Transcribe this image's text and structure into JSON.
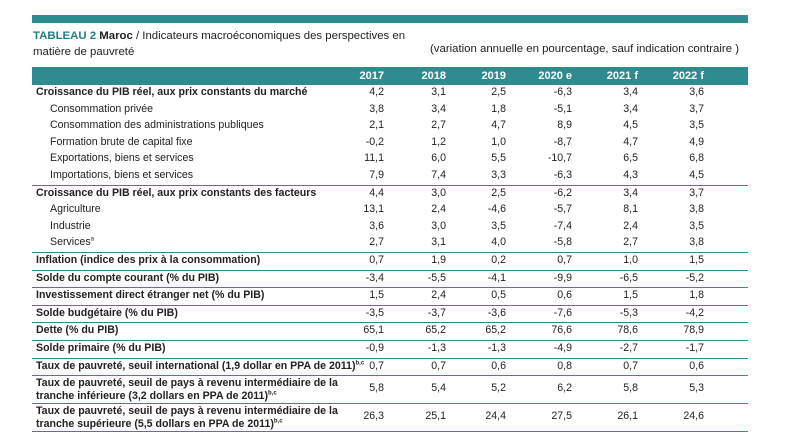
{
  "table": {
    "label": "TABLEAU 2",
    "country": "Maroc",
    "title_rest": " / Indicateurs macroéconomiques des perspectives en matière de pauvreté",
    "unit_note": "(variation annuelle en pourcentage, sauf indication contraire )",
    "years": [
      "2017",
      "2018",
      "2019",
      "2020 e",
      "2021 f",
      "2022 f"
    ],
    "rows": [
      {
        "label": "Croissance du PIB réel, aux prix constants du marché",
        "bold": true,
        "values": [
          "4,2",
          "3,1",
          "2,5",
          "-6,3",
          "3,4",
          "3,6"
        ]
      },
      {
        "label": "Consommation privée",
        "indent": true,
        "values": [
          "3,8",
          "3,4",
          "1,8",
          "-5,1",
          "3,4",
          "3,7"
        ]
      },
      {
        "label": "Consommation des administrations publiques",
        "indent": true,
        "values": [
          "2,1",
          "2,7",
          "4,7",
          "8,9",
          "4,5",
          "3,5"
        ]
      },
      {
        "label": "Formation brute de capital fixe",
        "indent": true,
        "values": [
          "-0,2",
          "1,2",
          "1,0",
          "-8,7",
          "4,7",
          "4,9"
        ]
      },
      {
        "label": "Exportations, biens et services",
        "indent": true,
        "values": [
          "11,1",
          "6,0",
          "5,5",
          "-10,7",
          "6,5",
          "6,8"
        ]
      },
      {
        "label": "Importations, biens et services",
        "indent": true,
        "values": [
          "7,9",
          "7,4",
          "3,3",
          "-6,3",
          "4,3",
          "4,5"
        ]
      },
      {
        "label": "Croissance du PIB réel, aux prix constants des facteurs",
        "bold": true,
        "sep": true,
        "values": [
          "4,4",
          "3,0",
          "2,5",
          "-6,2",
          "3,4",
          "3,7"
        ]
      },
      {
        "label": "Agriculture",
        "indent": true,
        "values": [
          "13,1",
          "2,4",
          "-4,6",
          "-5,7",
          "8,1",
          "3,8"
        ]
      },
      {
        "label": "Industrie",
        "indent": true,
        "values": [
          "3,6",
          "3,0",
          "3,5",
          "-7,4",
          "2,4",
          "3,5"
        ]
      },
      {
        "label": "Services",
        "sup": "a",
        "indent": true,
        "values": [
          "2,7",
          "3,1",
          "4,0",
          "-5,8",
          "2,7",
          "3,8"
        ]
      },
      {
        "label": "Inflation (indice des prix à la consommation)",
        "bold": true,
        "sep": true,
        "values": [
          "0,7",
          "1,9",
          "0,2",
          "0,7",
          "1,0",
          "1,5"
        ]
      },
      {
        "label": "Solde du compte courant (% du PIB)",
        "bold": true,
        "sep": true,
        "values": [
          "-3,4",
          "-5,5",
          "-4,1",
          "-9,9",
          "-6,5",
          "-5,2"
        ]
      },
      {
        "label": "Investissement direct étranger net (% du PIB)",
        "bold": true,
        "sep": true,
        "values": [
          "1,5",
          "2,4",
          "0,5",
          "0,6",
          "1,5",
          "1,8"
        ]
      },
      {
        "label": "Solde budgétaire (% du PIB)",
        "bold": true,
        "sep": true,
        "values": [
          "-3,5",
          "-3,7",
          "-3,6",
          "-7,6",
          "-5,3",
          "-4,2"
        ]
      },
      {
        "label": "Dette (% du PIB)",
        "bold": true,
        "sep": true,
        "values": [
          "65,1",
          "65,2",
          "65,2",
          "76,6",
          "78,6",
          "78,9"
        ]
      },
      {
        "label": "Solde primaire (% du PIB)",
        "bold": true,
        "sep": true,
        "values": [
          "-0,9",
          "-1,3",
          "-1,3",
          "-4,9",
          "-2,7",
          "-1,7"
        ]
      },
      {
        "label": "Taux de pauvreté, seuil international (1,9 dollar en PPA de 2011)",
        "sup": "b,c",
        "bold": true,
        "sep": true,
        "values": [
          "0,7",
          "0,7",
          "0,6",
          "0,8",
          "0,7",
          "0,6"
        ]
      },
      {
        "label": "Taux de pauvreté, seuil de pays à revenu intermédiaire de la",
        "label2": "tranche inférieure (3,2 dollars en PPA de 2011)",
        "sup": "b,c",
        "bold": true,
        "sep": true,
        "tall": true,
        "values": [
          "5,8",
          "5,4",
          "5,2",
          "6,2",
          "5,8",
          "5,3"
        ]
      },
      {
        "label": "Taux de pauvreté, seuil de pays à revenu intermédiaire de la",
        "label2": "tranche supérieure (5,5 dollars en PPA de 2011)",
        "sup": "b,c",
        "bold": true,
        "sep": true,
        "tall": true,
        "values": [
          "26,3",
          "25,1",
          "24,4",
          "27,5",
          "26,1",
          "24,6"
        ]
      }
    ]
  },
  "colors": {
    "accent": "#2e8b8f",
    "label_blue": "#1f7d86"
  }
}
